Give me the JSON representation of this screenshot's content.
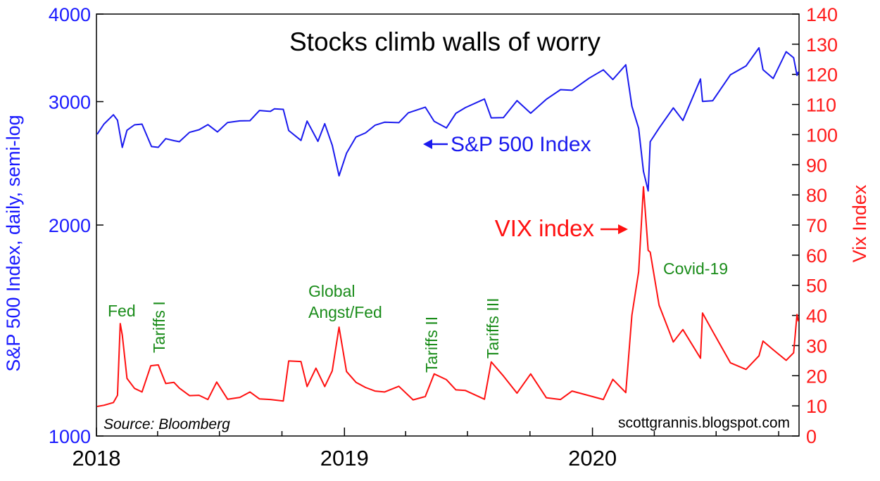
{
  "colors": {
    "left_axis": "#1a1aff",
    "right_axis": "#ff1a1a",
    "sp500": "#1a1aee",
    "vix": "#ff1010",
    "annotation": "#1a8c1a",
    "text": "#000000",
    "frame": "#000000"
  },
  "chart_data": {
    "type": "line",
    "title": "Stocks climb walls of worry",
    "source": "Source: Bloomberg",
    "credit": "scottgrannis.blogspot.com",
    "x_range": [
      "2018-01-01",
      "2020-10-31"
    ],
    "x_tick_labels": [
      {
        "date": "2018-01-01",
        "label": "2018"
      },
      {
        "date": "2019-01-01",
        "label": "2019"
      },
      {
        "date": "2020-01-01",
        "label": "2020"
      }
    ],
    "left_axis": {
      "label": "S&P 500 Index, daily, semi-log",
      "scale": "log",
      "ylim": [
        1000,
        4000
      ],
      "ticks": [
        1000,
        2000,
        3000,
        4000
      ],
      "tick_labels": [
        "1000",
        "2000",
        "3000",
        "4000"
      ]
    },
    "right_axis": {
      "label": "Vix Index",
      "scale": "linear",
      "ylim": [
        0,
        140
      ],
      "ticks": [
        0,
        10,
        20,
        30,
        40,
        50,
        60,
        70,
        80,
        90,
        100,
        110,
        120,
        130,
        140
      ],
      "tick_labels": [
        "0",
        "10",
        "20",
        "30",
        "40",
        "50",
        "60",
        "70",
        "80",
        "90",
        "100",
        "110",
        "120",
        "130",
        "140"
      ]
    },
    "grid": false,
    "series": [
      {
        "name": "S&P 500 Index",
        "axis": "left",
        "points": [
          [
            "2018-01-02",
            2695
          ],
          [
            "2018-01-12",
            2786
          ],
          [
            "2018-01-26",
            2873
          ],
          [
            "2018-02-01",
            2822
          ],
          [
            "2018-02-08",
            2581
          ],
          [
            "2018-02-15",
            2731
          ],
          [
            "2018-02-26",
            2780
          ],
          [
            "2018-03-09",
            2786
          ],
          [
            "2018-03-23",
            2588
          ],
          [
            "2018-04-02",
            2582
          ],
          [
            "2018-04-13",
            2656
          ],
          [
            "2018-04-25",
            2639
          ],
          [
            "2018-05-03",
            2630
          ],
          [
            "2018-05-18",
            2712
          ],
          [
            "2018-06-01",
            2735
          ],
          [
            "2018-06-14",
            2782
          ],
          [
            "2018-06-28",
            2716
          ],
          [
            "2018-07-13",
            2801
          ],
          [
            "2018-07-31",
            2816
          ],
          [
            "2018-08-15",
            2818
          ],
          [
            "2018-08-29",
            2914
          ],
          [
            "2018-09-14",
            2905
          ],
          [
            "2018-09-20",
            2930
          ],
          [
            "2018-10-03",
            2925
          ],
          [
            "2018-10-11",
            2728
          ],
          [
            "2018-10-29",
            2641
          ],
          [
            "2018-11-07",
            2814
          ],
          [
            "2018-11-23",
            2633
          ],
          [
            "2018-12-03",
            2790
          ],
          [
            "2018-12-14",
            2600
          ],
          [
            "2018-12-24",
            2351
          ],
          [
            "2019-01-04",
            2532
          ],
          [
            "2019-01-18",
            2671
          ],
          [
            "2019-02-01",
            2707
          ],
          [
            "2019-02-15",
            2776
          ],
          [
            "2019-03-01",
            2804
          ],
          [
            "2019-03-22",
            2800
          ],
          [
            "2019-04-05",
            2892
          ],
          [
            "2019-04-30",
            2946
          ],
          [
            "2019-05-13",
            2812
          ],
          [
            "2019-05-31",
            2752
          ],
          [
            "2019-06-14",
            2887
          ],
          [
            "2019-06-28",
            2942
          ],
          [
            "2019-07-26",
            3026
          ],
          [
            "2019-08-05",
            2844
          ],
          [
            "2019-08-23",
            2847
          ],
          [
            "2019-09-12",
            3010
          ],
          [
            "2019-10-02",
            2888
          ],
          [
            "2019-10-25",
            3023
          ],
          [
            "2019-11-15",
            3120
          ],
          [
            "2019-12-02",
            3114
          ],
          [
            "2019-12-27",
            3240
          ],
          [
            "2020-01-17",
            3330
          ],
          [
            "2020-01-31",
            3226
          ],
          [
            "2020-02-19",
            3386
          ],
          [
            "2020-02-28",
            2954
          ],
          [
            "2020-03-09",
            2747
          ],
          [
            "2020-03-16",
            2386
          ],
          [
            "2020-03-23",
            2237
          ],
          [
            "2020-03-26",
            2630
          ],
          [
            "2020-04-08",
            2750
          ],
          [
            "2020-04-29",
            2939
          ],
          [
            "2020-05-13",
            2820
          ],
          [
            "2020-06-08",
            3232
          ],
          [
            "2020-06-11",
            3002
          ],
          [
            "2020-06-26",
            3009
          ],
          [
            "2020-07-22",
            3276
          ],
          [
            "2020-08-14",
            3373
          ],
          [
            "2020-09-02",
            3580
          ],
          [
            "2020-09-08",
            3332
          ],
          [
            "2020-09-23",
            3237
          ],
          [
            "2020-10-12",
            3535
          ],
          [
            "2020-10-23",
            3465
          ],
          [
            "2020-10-28",
            3271
          ],
          [
            "2020-10-30",
            3310
          ]
        ]
      },
      {
        "name": "VIX index",
        "axis": "right",
        "points": [
          [
            "2018-01-02",
            9.8
          ],
          [
            "2018-01-12",
            10.2
          ],
          [
            "2018-01-26",
            11.1
          ],
          [
            "2018-02-01",
            13.5
          ],
          [
            "2018-02-05",
            37.3
          ],
          [
            "2018-02-08",
            33.5
          ],
          [
            "2018-02-15",
            19.1
          ],
          [
            "2018-02-26",
            15.8
          ],
          [
            "2018-03-09",
            14.6
          ],
          [
            "2018-03-22",
            23.3
          ],
          [
            "2018-04-02",
            23.6
          ],
          [
            "2018-04-13",
            17.4
          ],
          [
            "2018-04-25",
            17.8
          ],
          [
            "2018-05-03",
            15.9
          ],
          [
            "2018-05-18",
            13.4
          ],
          [
            "2018-06-01",
            13.5
          ],
          [
            "2018-06-14",
            12.1
          ],
          [
            "2018-06-27",
            17.9
          ],
          [
            "2018-07-13",
            12.2
          ],
          [
            "2018-07-31",
            12.8
          ],
          [
            "2018-08-15",
            14.6
          ],
          [
            "2018-08-29",
            12.3
          ],
          [
            "2018-09-14",
            12.1
          ],
          [
            "2018-10-03",
            11.6
          ],
          [
            "2018-10-11",
            24.9
          ],
          [
            "2018-10-29",
            24.7
          ],
          [
            "2018-11-07",
            16.4
          ],
          [
            "2018-11-20",
            22.5
          ],
          [
            "2018-12-03",
            16.4
          ],
          [
            "2018-12-14",
            21.6
          ],
          [
            "2018-12-24",
            36.1
          ],
          [
            "2019-01-04",
            21.4
          ],
          [
            "2019-01-18",
            17.8
          ],
          [
            "2019-02-01",
            16.1
          ],
          [
            "2019-02-15",
            14.9
          ],
          [
            "2019-03-01",
            14.6
          ],
          [
            "2019-03-22",
            16.5
          ],
          [
            "2019-04-12",
            12.0
          ],
          [
            "2019-04-30",
            13.1
          ],
          [
            "2019-05-13",
            20.6
          ],
          [
            "2019-05-31",
            18.7
          ],
          [
            "2019-06-14",
            15.3
          ],
          [
            "2019-06-28",
            15.1
          ],
          [
            "2019-07-26",
            12.2
          ],
          [
            "2019-08-05",
            24.6
          ],
          [
            "2019-08-23",
            19.9
          ],
          [
            "2019-09-12",
            14.2
          ],
          [
            "2019-10-02",
            20.6
          ],
          [
            "2019-10-25",
            12.7
          ],
          [
            "2019-11-15",
            12.1
          ],
          [
            "2019-12-02",
            14.9
          ],
          [
            "2019-12-27",
            13.4
          ],
          [
            "2020-01-17",
            12.1
          ],
          [
            "2020-01-31",
            18.8
          ],
          [
            "2020-02-19",
            14.4
          ],
          [
            "2020-02-28",
            40.1
          ],
          [
            "2020-03-09",
            54.5
          ],
          [
            "2020-03-16",
            82.7
          ],
          [
            "2020-03-23",
            61.6
          ],
          [
            "2020-03-26",
            61.0
          ],
          [
            "2020-04-08",
            43.4
          ],
          [
            "2020-04-29",
            31.2
          ],
          [
            "2020-05-13",
            35.3
          ],
          [
            "2020-06-08",
            25.8
          ],
          [
            "2020-06-11",
            40.8
          ],
          [
            "2020-06-26",
            34.7
          ],
          [
            "2020-07-22",
            24.3
          ],
          [
            "2020-08-14",
            22.1
          ],
          [
            "2020-09-02",
            26.6
          ],
          [
            "2020-09-08",
            31.5
          ],
          [
            "2020-09-23",
            28.6
          ],
          [
            "2020-10-12",
            25.1
          ],
          [
            "2020-10-23",
            27.6
          ],
          [
            "2020-10-28",
            40.3
          ],
          [
            "2020-10-30",
            38.0
          ]
        ]
      }
    ],
    "series_labels": [
      {
        "text": "S&P 500 Index",
        "series": "S&P 500 Index"
      },
      {
        "text": "VIX index",
        "series": "VIX index"
      }
    ],
    "annotations": [
      {
        "text": "Fed",
        "date": "2018-02-05"
      },
      {
        "text": "Tariffs I",
        "date": "2018-03-22",
        "orientation": "vertical"
      },
      {
        "lines": [
          "Global",
          "Angst/Fed"
        ],
        "date": "2018-12-24"
      },
      {
        "text": "Tariffs II",
        "date": "2019-05-13",
        "orientation": "vertical"
      },
      {
        "text": "Tariffs III",
        "date": "2019-08-05",
        "orientation": "vertical"
      },
      {
        "text": "Covid-19",
        "date": "2020-04-20"
      }
    ]
  }
}
